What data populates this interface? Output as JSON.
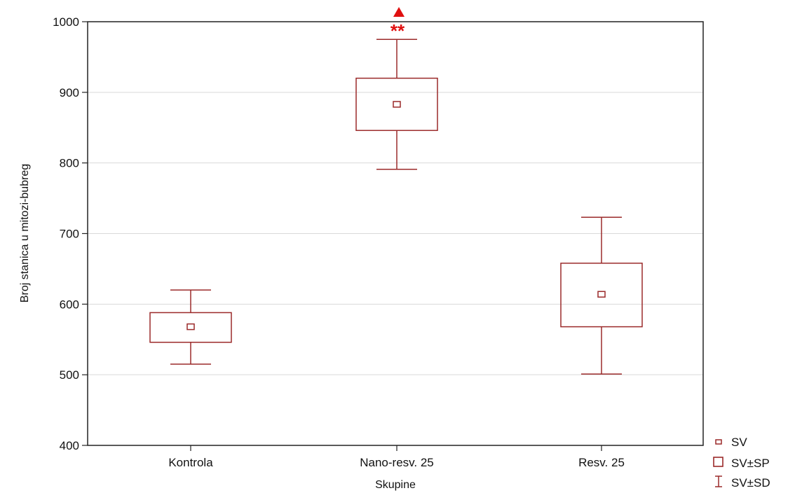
{
  "chart_data": {
    "type": "box",
    "xlabel": "Skupine",
    "ylabel": "Broj stanica u mitozi-bubreg",
    "ylim": [
      400,
      1000
    ],
    "yticks": [
      400,
      500,
      600,
      700,
      800,
      900,
      1000
    ],
    "grid": true,
    "categories": [
      "Kontrola",
      "Nano-resv. 25",
      "Resv. 25"
    ],
    "mean": [
      568,
      883,
      614
    ],
    "se_low": [
      546,
      846,
      568
    ],
    "se_high": [
      588,
      920,
      658
    ],
    "sd_low": [
      515,
      791,
      501
    ],
    "sd_high": [
      620,
      975,
      723
    ],
    "significance": [
      {
        "category": "Nano-resv. 25",
        "marker": "triangle",
        "stars": "**"
      }
    ],
    "legend": {
      "position": "bottom-right",
      "entries": [
        {
          "symbol": "small-square",
          "label": "SV"
        },
        {
          "symbol": "box",
          "label": "SV±SP"
        },
        {
          "symbol": "whisker",
          "label": "SV±SD"
        }
      ]
    },
    "colors": {
      "box": "#9b2a2a",
      "significance": "#e01010",
      "grid": "#d9d9d9",
      "frame": "#222222"
    }
  }
}
